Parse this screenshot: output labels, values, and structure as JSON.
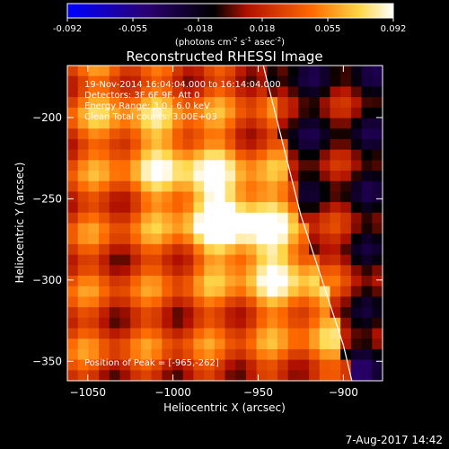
{
  "chart_data": {
    "type": "heatmap",
    "title": "Reconstructed RHESSI Image",
    "colorbar": {
      "ticks": [
        -0.092,
        -0.055,
        -0.018,
        0.018,
        0.055,
        0.092
      ],
      "tick_labels": [
        "-0.092",
        "-0.055",
        "-0.018",
        "0.018",
        "0.055",
        "0.092"
      ],
      "label_parts": [
        "(photons cm",
        "-2",
        " s",
        "-1",
        " asec",
        "-2",
        ")"
      ],
      "range": [
        -0.092,
        0.092
      ],
      "colors": [
        "#0000ff",
        "#2a006f",
        "#000000",
        "#b01000",
        "#ff6a00",
        "#ffd84a",
        "#ffffff"
      ]
    },
    "xlabel": "Heliocentric X (arcsec)",
    "ylabel": "Heliocentric Y (arcsec)",
    "xlim": [
      -1062,
      -877
    ],
    "ylim": [
      -362,
      -168
    ],
    "xticks": [
      -1050,
      -1000,
      -950,
      -900
    ],
    "xtick_labels": [
      "−1050",
      "−1000",
      "−950",
      "−900"
    ],
    "yticks": [
      -200,
      -250,
      -300,
      -350
    ],
    "ytick_labels": [
      "−200",
      "−250",
      "−300",
      "−350"
    ],
    "annotations": [
      "19-Nov-2014 16:04:04.000 to 16:14:04.000",
      "Detectors: 3F 6F 9F, Att 0",
      "Energy Range: 3.0 - 6.0 keV",
      "Clean    Total counts: 3.00E+03"
    ],
    "peak_label": "Position of Peak = [-965,-262]",
    "peak": {
      "x": -965,
      "y": -262,
      "value": 0.092
    },
    "limb_line": [
      [
        -947,
        -168
      ],
      [
        -925,
        -260
      ],
      [
        -900,
        -340
      ],
      [
        -895,
        -362
      ]
    ],
    "footer": "7-Aug-2017 14:42"
  }
}
